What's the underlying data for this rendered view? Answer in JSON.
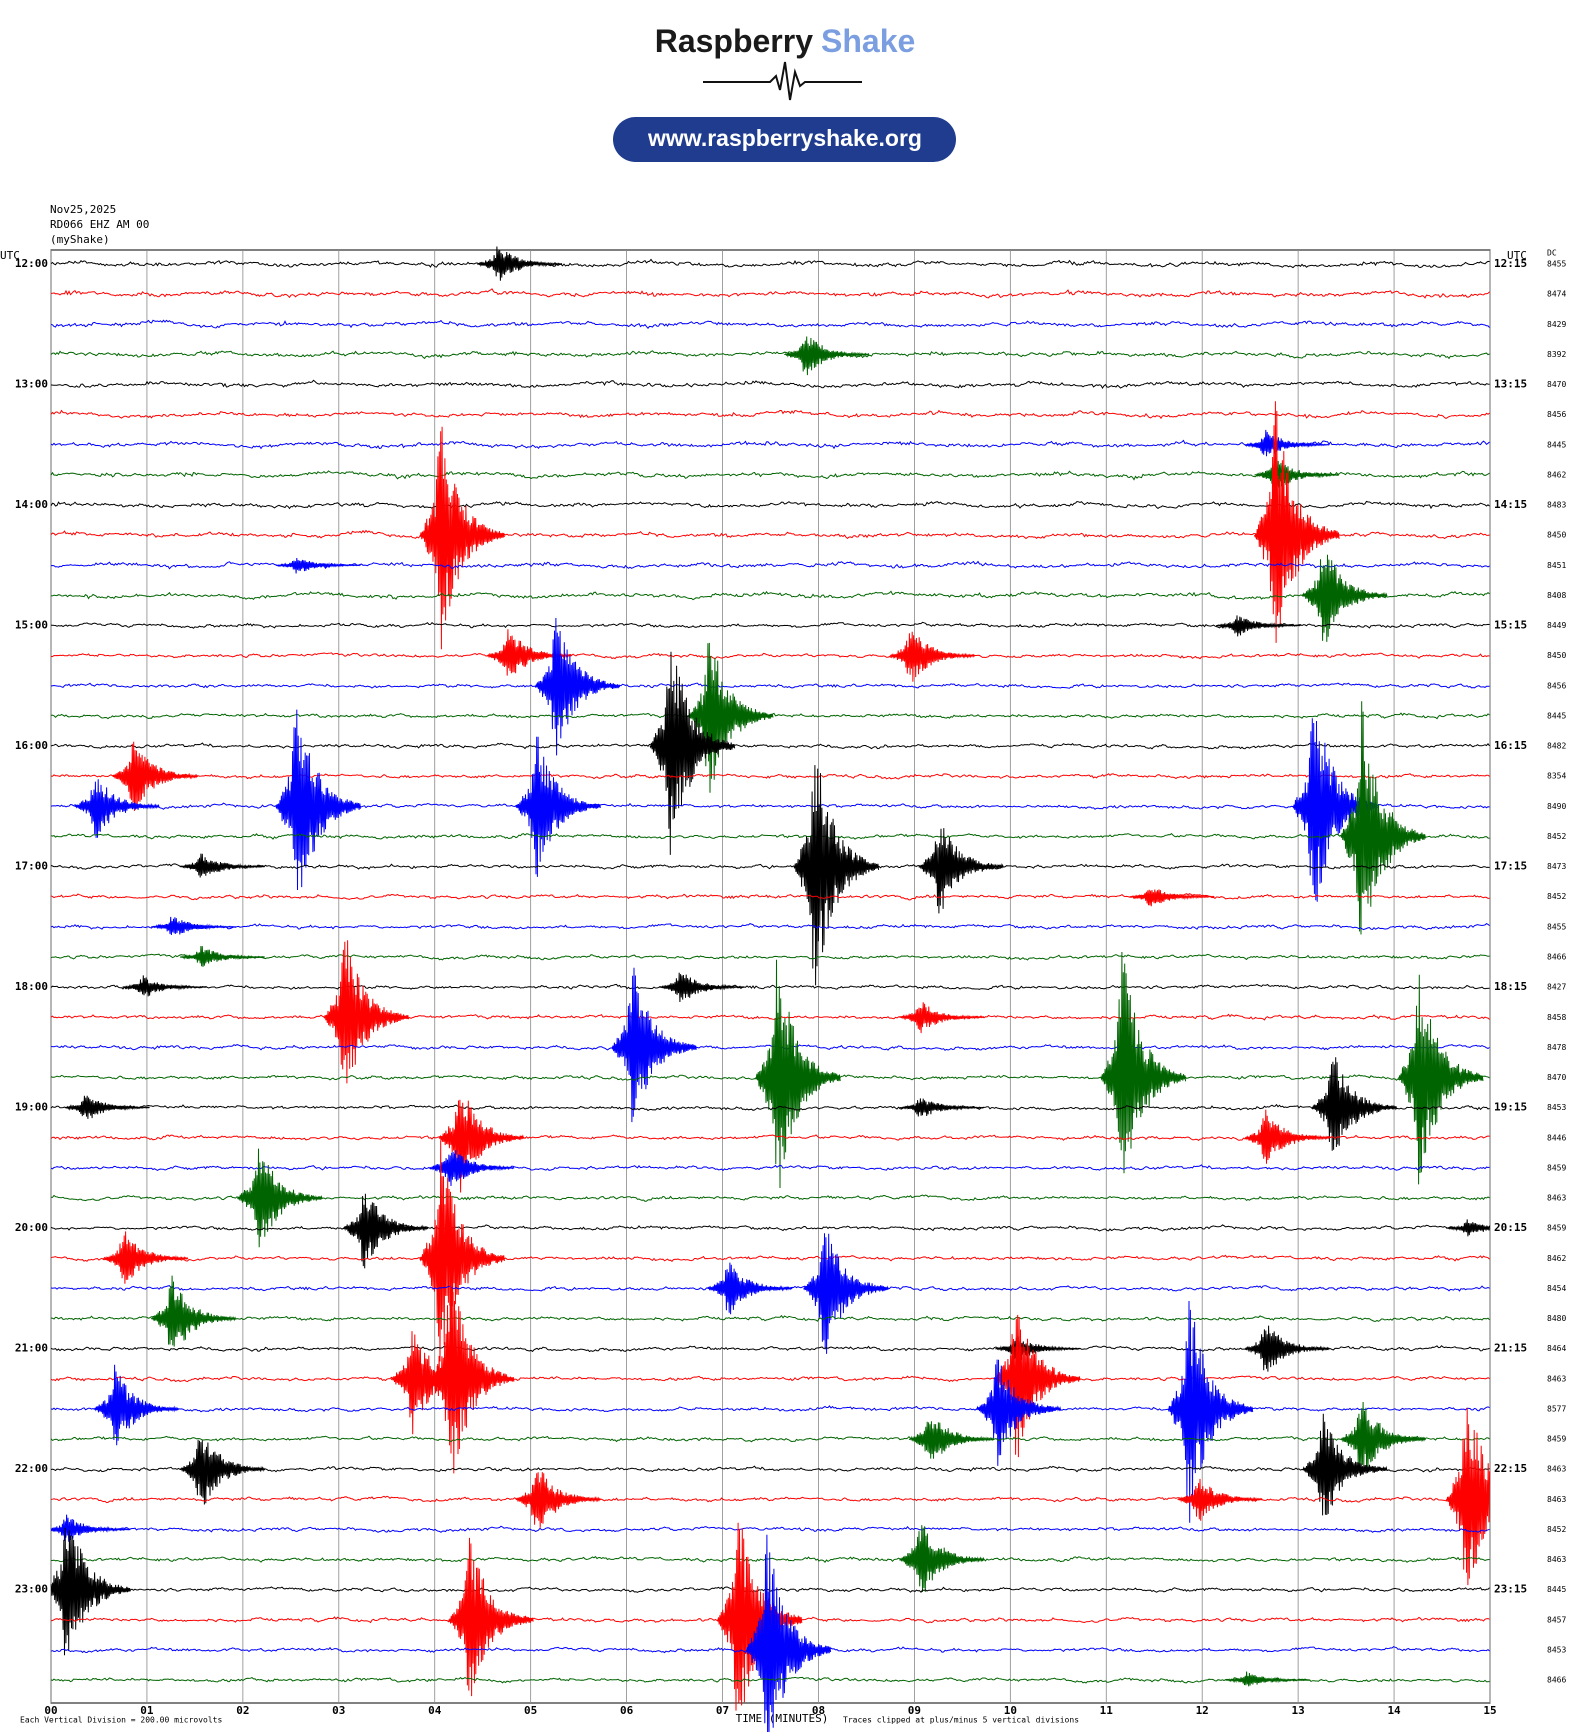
{
  "header": {
    "brand": "Raspberry",
    "brand2": "Shake",
    "url": "www.raspberryshake.org"
  },
  "chart_data": {
    "type": "helicorder",
    "date": "Nov25,2025",
    "station": "RD066 EHZ AM 00",
    "source": "(myShake)",
    "left_unit": "UTC",
    "right_unit": "UTC",
    "dc_label": "DC",
    "x_label": "TIME (MINUTES)",
    "scale_note": "Each Vertical Division =  200.00 microvolts",
    "clip_note": "Traces clipped at plus/minus 5 vertical divisions",
    "xlim": [
      0,
      15
    ],
    "xticks": [
      {
        "value": 0,
        "label": "00"
      },
      {
        "value": 1,
        "label": "01"
      },
      {
        "value": 2,
        "label": "02"
      },
      {
        "value": 3,
        "label": "03"
      },
      {
        "value": 4,
        "label": "04"
      },
      {
        "value": 5,
        "label": "05"
      },
      {
        "value": 6,
        "label": "06"
      },
      {
        "value": 7,
        "label": "07"
      },
      {
        "value": 8,
        "label": "08"
      },
      {
        "value": 9,
        "label": "09"
      },
      {
        "value": 10,
        "label": "10"
      },
      {
        "value": 11,
        "label": "11"
      },
      {
        "value": 12,
        "label": "12"
      },
      {
        "value": 13,
        "label": "13"
      },
      {
        "value": 14,
        "label": "14"
      },
      {
        "value": 15,
        "label": "15"
      }
    ],
    "left_labels": [
      "12:00",
      "13:00",
      "14:00",
      "15:00",
      "16:00",
      "17:00",
      "18:00",
      "19:00",
      "20:00",
      "21:00",
      "22:00",
      "23:00"
    ],
    "right_labels": [
      "12:15",
      "13:15",
      "14:15",
      "15:15",
      "16:15",
      "17:15",
      "18:15",
      "19:15",
      "20:15",
      "21:15",
      "22:15",
      "23:15"
    ],
    "colors": [
      "#000000",
      "#ff0000",
      "#0000ff",
      "#006400"
    ],
    "dc": [
      8455,
      8474,
      8429,
      8392,
      8470,
      8456,
      8445,
      8462,
      8483,
      8450,
      8451,
      8408,
      8449,
      8450,
      8456,
      8445,
      8482,
      8354,
      8490,
      8452,
      8473,
      8452,
      8455,
      8466,
      8427,
      8458,
      8478,
      8470,
      8453,
      8446,
      8459,
      8463,
      8459,
      8462,
      8454,
      8480,
      8464,
      8463,
      8577,
      8459,
      8463,
      8463,
      8452,
      8463,
      8445,
      8457,
      8453,
      8466
    ],
    "events": [
      [
        [
          4.6,
          0.7
        ]
      ],
      [],
      [],
      [
        [
          7.8,
          0.8
        ]
      ],
      [],
      [],
      [
        [
          12.6,
          0.5
        ]
      ],
      [
        [
          12.7,
          0.6
        ]
      ],
      [],
      [
        [
          4.0,
          4
        ],
        [
          12.7,
          4.5
        ]
      ],
      [
        [
          2.5,
          0.3
        ]
      ],
      [
        [
          13.2,
          2
        ]
      ],
      [
        [
          12.3,
          0.4
        ]
      ],
      [
        [
          4.7,
          1
        ],
        [
          8.9,
          1
        ]
      ],
      [
        [
          5.2,
          2.5
        ]
      ],
      [
        [
          6.8,
          3
        ]
      ],
      [
        [
          6.4,
          4
        ]
      ],
      [
        [
          0.8,
          1.3
        ]
      ],
      [
        [
          0.4,
          1.2
        ],
        [
          2.5,
          4
        ],
        [
          5.0,
          2.5
        ],
        [
          13.1,
          4
        ]
      ],
      [
        [
          13.6,
          4.5
        ]
      ],
      [
        [
          1.5,
          0.5
        ],
        [
          7.9,
          4.5
        ],
        [
          9.2,
          1.8
        ]
      ],
      [
        [
          11.4,
          0.4
        ]
      ],
      [
        [
          1.2,
          0.4
        ]
      ],
      [
        [
          1.5,
          0.4
        ]
      ],
      [
        [
          0.9,
          0.4
        ],
        [
          6.5,
          0.6
        ]
      ],
      [
        [
          3.0,
          3
        ],
        [
          9.0,
          0.6
        ]
      ],
      [
        [
          6.0,
          3
        ]
      ],
      [
        [
          7.5,
          4.5
        ],
        [
          11.1,
          4.5
        ],
        [
          14.2,
          4
        ]
      ],
      [
        [
          0.3,
          0.5
        ],
        [
          9.0,
          0.4
        ],
        [
          13.3,
          2
        ]
      ],
      [
        [
          4.2,
          2
        ],
        [
          12.6,
          1
        ]
      ],
      [
        [
          4.1,
          0.8
        ]
      ],
      [
        [
          2.1,
          2
        ]
      ],
      [
        [
          3.2,
          1.5
        ],
        [
          14.7,
          0.3
        ]
      ],
      [
        [
          0.7,
          1
        ],
        [
          4.0,
          4
        ]
      ],
      [
        [
          7.0,
          1
        ],
        [
          8.0,
          2.5
        ]
      ],
      [
        [
          1.2,
          1.5
        ]
      ],
      [
        [
          10,
          0.5
        ],
        [
          12.6,
          1
        ]
      ],
      [
        [
          3.7,
          2
        ],
        [
          4.1,
          4
        ],
        [
          10.0,
          3
        ]
      ],
      [
        [
          0.6,
          1.5
        ],
        [
          9.8,
          2
        ],
        [
          11.8,
          4
        ]
      ],
      [
        [
          9.1,
          1
        ],
        [
          13.6,
          1.5
        ]
      ],
      [
        [
          1.5,
          1.5
        ],
        [
          13.2,
          2
        ]
      ],
      [
        [
          5.0,
          1.3
        ],
        [
          11.9,
          0.8
        ],
        [
          14.7,
          4
        ]
      ],
      [
        [
          0.1,
          0.5
        ]
      ],
      [
        [
          9.0,
          1.5
        ]
      ],
      [
        [
          0.1,
          3
        ]
      ],
      [
        [
          4.3,
          3
        ],
        [
          7.1,
          4
        ]
      ],
      [
        [
          7.4,
          4
        ]
      ],
      [
        [
          12.4,
          0.3
        ]
      ]
    ]
  }
}
